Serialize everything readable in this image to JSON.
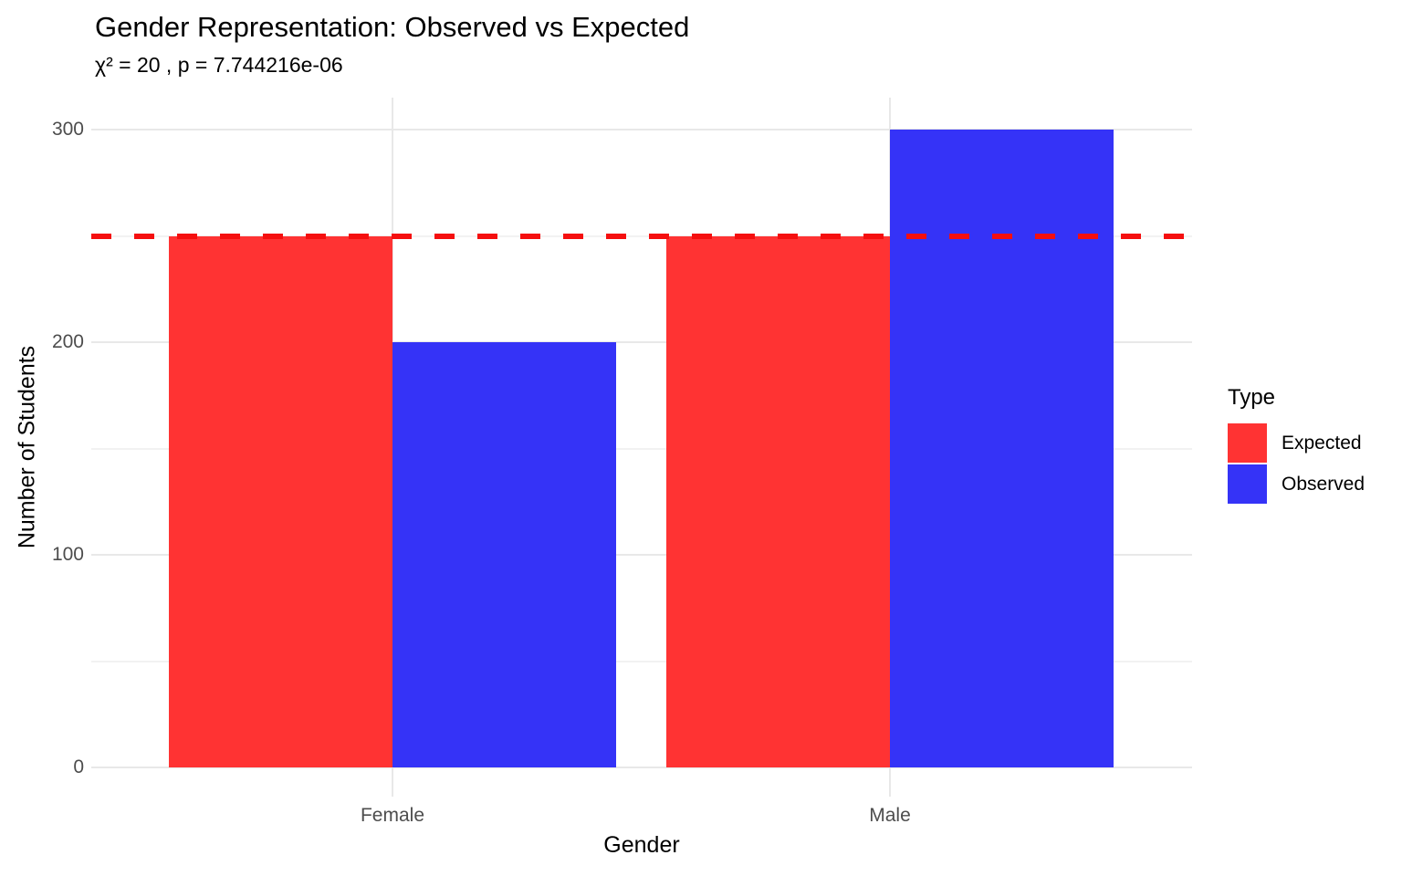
{
  "chart_data": {
    "type": "bar",
    "title": "Gender Representation: Observed vs Expected",
    "subtitle": "χ² = 20 , p = 7.744216e-06",
    "xlabel": "Gender",
    "ylabel": "Number of Students",
    "categories": [
      "Female",
      "Male"
    ],
    "series": [
      {
        "name": "Expected",
        "values": [
          250,
          250
        ],
        "color": "#ff3333"
      },
      {
        "name": "Observed",
        "values": [
          200,
          300
        ],
        "color": "#3533f7"
      }
    ],
    "ylim": [
      0,
      300
    ],
    "yticks": [
      0,
      100,
      200,
      300
    ],
    "yticks_minor": [
      50,
      150,
      250
    ],
    "reference_line": {
      "value": 250,
      "color": "#f50f0f",
      "style": "dashed"
    },
    "grid": true,
    "legend": {
      "title": "Type",
      "position": "right",
      "entries": [
        {
          "label": "Expected",
          "color": "#ff3333"
        },
        {
          "label": "Observed",
          "color": "#3533f7"
        }
      ]
    }
  }
}
